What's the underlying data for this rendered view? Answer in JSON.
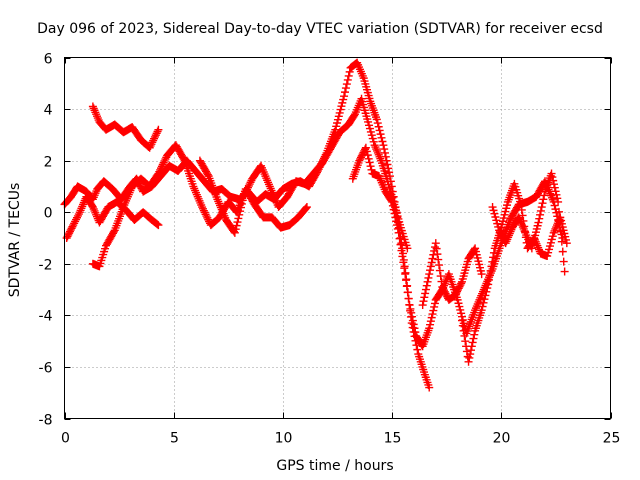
{
  "chart_data": {
    "type": "scatter",
    "title": "Day 096 of 2023, Sidereal Day-to-day VTEC variation (SDTVAR) for receiver ecsd",
    "xlabel": "GPS time / hours",
    "ylabel": "SDTVAR / TECUs",
    "xlim": [
      0,
      25
    ],
    "ylim": [
      -8,
      6
    ],
    "x_ticks": [
      "0",
      "5",
      "10",
      "15",
      "20",
      "25"
    ],
    "y_ticks": [
      "-8",
      "-6",
      "-4",
      "-2",
      "0",
      "2",
      "4",
      "6"
    ],
    "grid": true,
    "legend": "none",
    "marker": "plus",
    "series": [
      {
        "color": "#ff0000",
        "x": [
          0.0,
          0.3,
          0.6,
          1.0,
          1.3,
          1.5,
          1.8,
          2.2,
          2.6,
          3.0,
          3.3,
          3.6,
          4.0,
          4.4,
          4.8,
          5.2,
          5.6,
          6.0,
          6.4,
          6.8,
          7.2,
          7.6,
          8.0,
          8.4,
          8.8,
          9.2,
          9.6,
          10.0,
          10.4,
          10.8,
          11.2,
          11.6,
          12.0,
          12.4,
          12.8,
          13.1,
          13.4,
          13.7,
          14.0,
          14.3,
          14.6,
          14.9,
          15.2,
          15.5,
          15.8,
          16.1,
          16.4,
          16.7,
          17.0,
          17.3,
          17.6,
          18.0,
          18.4,
          18.8,
          19.2,
          19.6,
          20.0,
          20.4,
          20.8,
          21.2,
          21.6,
          22.0,
          22.4,
          22.8
        ],
        "y": [
          0.3,
          0.6,
          1.0,
          0.8,
          0.5,
          0.9,
          1.2,
          0.9,
          0.5,
          1.0,
          1.3,
          0.8,
          1.0,
          1.4,
          1.8,
          1.6,
          2.0,
          1.6,
          1.2,
          0.8,
          0.9,
          0.6,
          0.5,
          0.8,
          0.4,
          0.7,
          0.5,
          0.9,
          1.1,
          1.2,
          1.0,
          1.6,
          2.3,
          3.2,
          4.5,
          5.6,
          5.8,
          5.2,
          4.3,
          3.6,
          2.6,
          1.4,
          0.0,
          -1.6,
          -3.6,
          -4.8,
          -5.2,
          -4.5,
          -3.4,
          -3.0,
          -2.4,
          -3.4,
          -4.7,
          -3.8,
          -3.0,
          -2.2,
          -1.2,
          -0.3,
          0.3,
          0.4,
          0.6,
          1.2,
          0.4,
          -1.0
        ]
      },
      {
        "color": "#ff0000",
        "x": [
          0.1,
          0.4,
          0.7,
          1.0,
          1.3,
          1.6,
          2.0,
          2.4,
          2.8,
          3.2,
          3.6,
          4.0,
          4.3
        ],
        "y": [
          -1.0,
          -0.5,
          0.0,
          0.6,
          0.2,
          -0.4,
          0.2,
          0.4,
          0.1,
          -0.3,
          0.0,
          -0.3,
          -0.5
        ]
      },
      {
        "color": "#ff0000",
        "x": [
          1.3,
          1.6,
          1.9,
          2.3,
          2.7,
          3.1,
          3.5,
          3.9,
          4.3
        ],
        "y": [
          4.1,
          3.5,
          3.2,
          3.4,
          3.1,
          3.3,
          2.8,
          2.5,
          3.2
        ]
      },
      {
        "color": "#ff0000",
        "x": [
          1.3,
          1.6,
          1.9,
          2.3,
          2.7,
          3.1,
          3.5,
          3.9,
          4.3,
          4.7,
          5.1,
          5.5,
          5.9,
          6.3,
          6.7,
          7.1,
          7.5,
          7.9,
          8.3,
          8.7,
          9.1,
          9.5,
          9.9,
          10.3,
          10.7,
          11.1
        ],
        "y": [
          -2.0,
          -2.1,
          -1.3,
          -0.7,
          0.2,
          1.0,
          1.3,
          1.0,
          1.5,
          2.2,
          2.6,
          2.0,
          1.0,
          0.2,
          -0.5,
          -0.2,
          0.4,
          0.0,
          0.9,
          0.3,
          -0.2,
          -0.2,
          -0.6,
          -0.5,
          -0.2,
          0.2
        ]
      },
      {
        "color": "#ff0000",
        "x": [
          6.2,
          6.6,
          7.0,
          7.4,
          7.8,
          8.2,
          8.6,
          9.0,
          9.4,
          9.8,
          10.2,
          10.6,
          11.0,
          11.4,
          11.8,
          12.2,
          12.6,
          13.0,
          13.3,
          13.6,
          13.9,
          14.2,
          14.5,
          14.8,
          15.1,
          15.4,
          15.7
        ],
        "y": [
          2.0,
          1.4,
          0.5,
          -0.3,
          -0.8,
          0.6,
          1.3,
          1.8,
          1.0,
          0.2,
          0.6,
          1.2,
          1.1,
          1.5,
          1.9,
          2.5,
          3.1,
          3.4,
          3.8,
          4.4,
          3.5,
          2.6,
          2.0,
          1.2,
          0.3,
          -0.6,
          -1.4
        ]
      },
      {
        "color": "#ff0000",
        "x": [
          13.2,
          13.5,
          13.8,
          14.1,
          14.4,
          14.7,
          15.0,
          15.3,
          15.6,
          15.9,
          16.2,
          16.5,
          16.7
        ],
        "y": [
          1.3,
          2.0,
          2.5,
          1.5,
          1.4,
          0.8,
          0.4,
          -0.8,
          -2.4,
          -4.3,
          -5.5,
          -6.3,
          -6.8
        ]
      },
      {
        "color": "#ff0000",
        "x": [
          16.4,
          16.7,
          17.0,
          17.3,
          17.6,
          17.9,
          18.2,
          18.5,
          18.8,
          19.1
        ],
        "y": [
          -3.6,
          -2.4,
          -1.2,
          -2.9,
          -3.4,
          -3.2,
          -2.7,
          -1.8,
          -1.4,
          -2.4
        ]
      },
      {
        "color": "#ff0000",
        "x": [
          18.2,
          18.5,
          18.8,
          19.1,
          19.4,
          19.7,
          20.0,
          20.3,
          20.6,
          20.9,
          21.2,
          21.5,
          21.8,
          22.1,
          22.4,
          22.7,
          23.0
        ],
        "y": [
          -4.2,
          -5.8,
          -4.6,
          -3.8,
          -2.8,
          -1.4,
          -0.6,
          0.4,
          1.1,
          0.3,
          -1.4,
          -1.0,
          -1.6,
          -1.7,
          -0.8,
          -0.2,
          -1.2
        ]
      },
      {
        "color": "#ff0000",
        "x": [
          19.6,
          19.9,
          20.2,
          20.5,
          20.8,
          21.1,
          21.4,
          21.7,
          22.0,
          22.3,
          22.6,
          22.9
        ],
        "y": [
          0.2,
          -0.7,
          -1.2,
          -0.6,
          -0.2,
          -0.8,
          -1.4,
          -0.4,
          0.8,
          1.5,
          0.4,
          -2.3
        ]
      }
    ]
  }
}
